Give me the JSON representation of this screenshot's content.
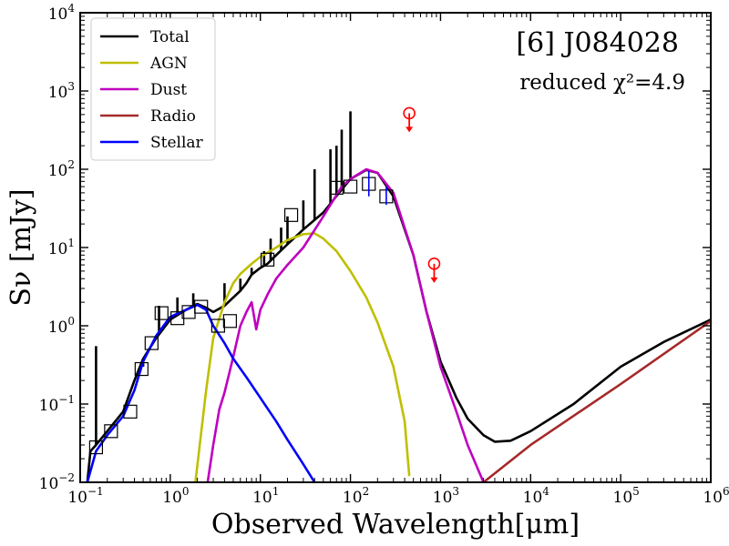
{
  "chart_data": {
    "type": "line",
    "title": "[6] J084028",
    "subtitle": "reduced χ²=4.9",
    "xlabel": "Observed Wavelength[μm]",
    "ylabel": "Sν [mJy]",
    "xscale": "log",
    "yscale": "log",
    "xlim": [
      0.1,
      1000000
    ],
    "ylim": [
      0.01,
      10000
    ],
    "x_ticks": [
      {
        "base": "10",
        "exp": "−1"
      },
      {
        "base": "10",
        "exp": "0"
      },
      {
        "base": "10",
        "exp": "1"
      },
      {
        "base": "10",
        "exp": "2"
      },
      {
        "base": "10",
        "exp": "3"
      },
      {
        "base": "10",
        "exp": "4"
      },
      {
        "base": "10",
        "exp": "5"
      },
      {
        "base": "10",
        "exp": "6"
      }
    ],
    "y_ticks": [
      {
        "base": "10",
        "exp": "−2"
      },
      {
        "base": "10",
        "exp": "−1"
      },
      {
        "base": "10",
        "exp": "0"
      },
      {
        "base": "10",
        "exp": "1"
      },
      {
        "base": "10",
        "exp": "2"
      },
      {
        "base": "10",
        "exp": "3"
      },
      {
        "base": "10",
        "exp": "4"
      }
    ],
    "legend_position": "top-left",
    "series": [
      {
        "name": "Total",
        "color": "#000000",
        "points": [
          [
            0.12,
            0.01
          ],
          [
            0.13,
            0.025
          ],
          [
            0.15,
            0.03
          ],
          [
            0.2,
            0.045
          ],
          [
            0.3,
            0.08
          ],
          [
            0.4,
            0.2
          ],
          [
            0.5,
            0.38
          ],
          [
            0.7,
            0.7
          ],
          [
            1.0,
            1.2
          ],
          [
            1.5,
            1.6
          ],
          [
            2.0,
            1.9
          ],
          [
            2.5,
            1.7
          ],
          [
            3.0,
            1.5
          ],
          [
            4.0,
            1.8
          ],
          [
            5.0,
            2.3
          ],
          [
            6.0,
            2.8
          ],
          [
            7.0,
            3.5
          ],
          [
            8.0,
            4.5
          ],
          [
            10,
            5.5
          ],
          [
            12,
            6.2
          ],
          [
            15,
            8
          ],
          [
            20,
            11
          ],
          [
            30,
            17
          ],
          [
            50,
            28
          ],
          [
            80,
            55
          ],
          [
            100,
            75
          ],
          [
            150,
            98
          ],
          [
            200,
            90
          ],
          [
            300,
            45
          ],
          [
            500,
            8
          ],
          [
            700,
            1.5
          ],
          [
            1000,
            0.35
          ],
          [
            1500,
            0.12
          ],
          [
            2000,
            0.065
          ],
          [
            3000,
            0.04
          ],
          [
            4000,
            0.033
          ],
          [
            6000,
            0.034
          ],
          [
            10000,
            0.045
          ],
          [
            30000,
            0.1
          ],
          [
            100000,
            0.3
          ],
          [
            300000,
            0.62
          ],
          [
            1000000,
            1.2
          ]
        ],
        "spikes": [
          [
            0.15,
            0.55
          ],
          [
            0.5,
            0.3
          ],
          [
            0.75,
            1.8
          ],
          [
            1.2,
            2.3
          ],
          [
            1.8,
            2.6
          ],
          [
            4.0,
            3.5
          ],
          [
            6.0,
            4.0
          ],
          [
            8.0,
            5.5
          ],
          [
            11,
            9.0
          ],
          [
            13,
            13
          ],
          [
            17,
            18
          ],
          [
            20,
            25
          ],
          [
            30,
            40
          ],
          [
            40,
            100
          ],
          [
            60,
            180
          ],
          [
            70,
            200
          ],
          [
            80,
            320
          ],
          [
            100,
            550
          ]
        ]
      },
      {
        "name": "AGN",
        "color": "#bfbf00",
        "points": [
          [
            1.9,
            0.01
          ],
          [
            2.5,
            0.15
          ],
          [
            3.0,
            0.7
          ],
          [
            4.0,
            2.0
          ],
          [
            5.0,
            3.5
          ],
          [
            6.0,
            4.6
          ],
          [
            8.0,
            6.2
          ],
          [
            10,
            7.6
          ],
          [
            15,
            10
          ],
          [
            20,
            12.5
          ],
          [
            30,
            14.8
          ],
          [
            40,
            15.2
          ],
          [
            50,
            13
          ],
          [
            70,
            9
          ],
          [
            100,
            5
          ],
          [
            150,
            2.3
          ],
          [
            200,
            1.1
          ],
          [
            300,
            0.3
          ],
          [
            400,
            0.06
          ],
          [
            450,
            0.012
          ]
        ]
      },
      {
        "name": "Dust",
        "color": "#bf00bf",
        "points": [
          [
            2.6,
            0.01
          ],
          [
            3.0,
            0.03
          ],
          [
            3.5,
            0.085
          ],
          [
            4.0,
            0.14
          ],
          [
            5.0,
            0.4
          ],
          [
            6.0,
            1.0
          ],
          [
            7.0,
            1.5
          ],
          [
            8.0,
            2.0
          ],
          [
            9.0,
            0.9
          ],
          [
            10,
            1.6
          ],
          [
            12,
            2.5
          ],
          [
            15,
            4
          ],
          [
            20,
            6
          ],
          [
            30,
            10
          ],
          [
            50,
            25
          ],
          [
            80,
            60
          ],
          [
            100,
            75
          ],
          [
            150,
            100
          ],
          [
            200,
            90
          ],
          [
            300,
            50
          ],
          [
            500,
            8
          ],
          [
            700,
            1.5
          ],
          [
            1000,
            0.3
          ],
          [
            1500,
            0.08
          ],
          [
            2000,
            0.03
          ],
          [
            3000,
            0.01
          ]
        ]
      },
      {
        "name": "Radio",
        "color": "#a52a2a",
        "points": [
          [
            3000,
            0.01
          ],
          [
            10000,
            0.03
          ],
          [
            100000,
            0.18
          ],
          [
            1000000,
            1.15
          ]
        ]
      },
      {
        "name": "Stellar",
        "color": "#0000ff",
        "points": [
          [
            0.12,
            0.01
          ],
          [
            0.15,
            0.025
          ],
          [
            0.2,
            0.04
          ],
          [
            0.3,
            0.07
          ],
          [
            0.4,
            0.15
          ],
          [
            0.5,
            0.35
          ],
          [
            0.7,
            0.75
          ],
          [
            1.0,
            1.3
          ],
          [
            1.5,
            1.6
          ],
          [
            2.0,
            1.85
          ],
          [
            2.5,
            1.6
          ],
          [
            3.0,
            1.0
          ],
          [
            4.0,
            0.6
          ],
          [
            5.0,
            0.38
          ],
          [
            7.0,
            0.22
          ],
          [
            10,
            0.12
          ],
          [
            15,
            0.06
          ],
          [
            20,
            0.035
          ],
          [
            30,
            0.017
          ],
          [
            40,
            0.01
          ]
        ]
      }
    ],
    "observed": [
      {
        "x": 0.15,
        "y": 0.028
      },
      {
        "x": 0.22,
        "y": 0.045
      },
      {
        "x": 0.36,
        "y": 0.08
      },
      {
        "x": 0.48,
        "y": 0.28
      },
      {
        "x": 0.62,
        "y": 0.6
      },
      {
        "x": 0.8,
        "y": 1.45
      },
      {
        "x": 1.2,
        "y": 1.25
      },
      {
        "x": 1.6,
        "y": 1.5
      },
      {
        "x": 2.2,
        "y": 1.75
      },
      {
        "x": 3.4,
        "y": 1.0
      },
      {
        "x": 4.6,
        "y": 1.15
      },
      {
        "x": 12,
        "y": 7.0
      },
      {
        "x": 22,
        "y": 26
      },
      {
        "x": 70,
        "y": 58
      },
      {
        "x": 100,
        "y": 60
      },
      {
        "x": 160,
        "y": 65
      },
      {
        "x": 250,
        "y": 45
      }
    ],
    "error_bars": [
      {
        "x": 160,
        "y_low": 45,
        "y_high": 95
      },
      {
        "x": 250,
        "y_low": 35,
        "y_high": 60
      }
    ],
    "upper_limits": [
      {
        "x": 450,
        "y": 520
      },
      {
        "x": 850,
        "y": 6.2
      }
    ]
  }
}
